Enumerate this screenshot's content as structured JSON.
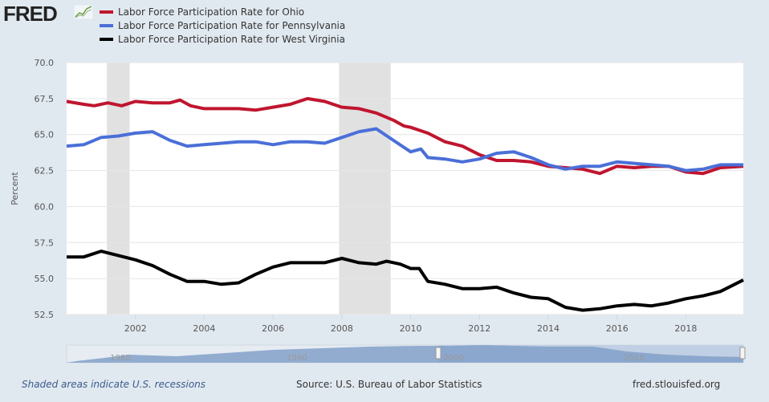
{
  "logo": {
    "text": "FRED",
    "icon": "chart-line-icon"
  },
  "footer": {
    "note": "Shaded areas indicate U.S. recessions",
    "source": "Source: U.S. Bureau of Labor Statistics",
    "url": "fred.stlouisfed.org"
  },
  "chart_data": {
    "type": "line",
    "title": "",
    "xlabel": "",
    "ylabel": "Percent",
    "xlim": [
      2000.0,
      2019.67
    ],
    "ylim": [
      52.5,
      70.0
    ],
    "yticks": [
      "52.5",
      "55.0",
      "57.5",
      "60.0",
      "62.5",
      "65.0",
      "67.5",
      "70.0"
    ],
    "xticks": [
      "2002",
      "2004",
      "2006",
      "2008",
      "2010",
      "2012",
      "2014",
      "2016",
      "2018"
    ],
    "grid": true,
    "legend_position": "top-left",
    "recessions": [
      [
        2001.17,
        2001.83
      ],
      [
        2007.92,
        2009.42
      ]
    ],
    "navigator_labels": [
      "1980",
      "1990",
      "2000",
      "2010"
    ],
    "series": [
      {
        "name": "Labor Force Participation Rate for Ohio",
        "color": "#c0152f",
        "x": [
          2000,
          2000.5,
          2000.8,
          2001.2,
          2001.6,
          2002,
          2002.5,
          2003,
          2003.3,
          2003.6,
          2004,
          2005,
          2005.5,
          2006,
          2006.5,
          2007,
          2007.5,
          2008,
          2008.5,
          2009,
          2009.5,
          2009.8,
          2010,
          2010.5,
          2011,
          2011.5,
          2012,
          2012.5,
          2013,
          2013.5,
          2014,
          2014.5,
          2015,
          2015.5,
          2016,
          2016.5,
          2017,
          2017.5,
          2018,
          2018.5,
          2019,
          2019.67
        ],
        "values": [
          67.3,
          67.1,
          67.0,
          67.2,
          67.0,
          67.3,
          67.2,
          67.2,
          67.4,
          67.0,
          66.8,
          66.8,
          66.7,
          66.9,
          67.1,
          67.5,
          67.3,
          66.9,
          66.8,
          66.5,
          66.0,
          65.6,
          65.5,
          65.1,
          64.5,
          64.2,
          63.6,
          63.2,
          63.2,
          63.1,
          62.8,
          62.7,
          62.6,
          62.3,
          62.8,
          62.7,
          62.8,
          62.8,
          62.4,
          62.3,
          62.7,
          62.8
        ]
      },
      {
        "name": "Labor Force Participation Rate for Pennsylvania",
        "color": "#4a6fd8",
        "x": [
          2000,
          2000.5,
          2001,
          2001.5,
          2002,
          2002.5,
          2003,
          2003.5,
          2004,
          2005,
          2005.5,
          2006,
          2006.5,
          2007,
          2007.5,
          2008,
          2008.5,
          2009,
          2009.5,
          2010,
          2010.3,
          2010.5,
          2011,
          2011.5,
          2012,
          2012.5,
          2013,
          2013.5,
          2014,
          2014.5,
          2015,
          2015.5,
          2016,
          2016.5,
          2017,
          2017.5,
          2018,
          2018.5,
          2019,
          2019.67
        ],
        "values": [
          64.2,
          64.3,
          64.8,
          64.9,
          65.1,
          65.2,
          64.6,
          64.2,
          64.3,
          64.5,
          64.5,
          64.3,
          64.5,
          64.5,
          64.4,
          64.8,
          65.2,
          65.4,
          64.6,
          63.8,
          64.0,
          63.4,
          63.3,
          63.1,
          63.3,
          63.7,
          63.8,
          63.4,
          62.9,
          62.6,
          62.8,
          62.8,
          63.1,
          63.0,
          62.9,
          62.8,
          62.5,
          62.6,
          62.9,
          62.9
        ]
      },
      {
        "name": "Labor Force Participation Rate for West Virginia",
        "color": "#000000",
        "x": [
          2000,
          2000.5,
          2001,
          2001.5,
          2002,
          2002.5,
          2003,
          2003.5,
          2004,
          2004.5,
          2005,
          2005.5,
          2006,
          2006.5,
          2007,
          2007.5,
          2008,
          2008.5,
          2009,
          2009.3,
          2009.7,
          2010,
          2010.25,
          2010.5,
          2011,
          2011.5,
          2012,
          2012.5,
          2013,
          2013.5,
          2014,
          2014.5,
          2015,
          2015.5,
          2016,
          2016.5,
          2017,
          2017.5,
          2018,
          2018.5,
          2019,
          2019.67
        ],
        "values": [
          56.5,
          56.5,
          56.9,
          56.6,
          56.3,
          55.9,
          55.3,
          54.8,
          54.8,
          54.6,
          54.7,
          55.3,
          55.8,
          56.1,
          56.1,
          56.1,
          56.4,
          56.1,
          56.0,
          56.2,
          56.0,
          55.7,
          55.7,
          54.8,
          54.6,
          54.3,
          54.3,
          54.4,
          54.0,
          53.7,
          53.6,
          53.0,
          52.8,
          52.9,
          53.1,
          53.2,
          53.1,
          53.3,
          53.6,
          53.8,
          54.1,
          54.9
        ]
      }
    ]
  }
}
